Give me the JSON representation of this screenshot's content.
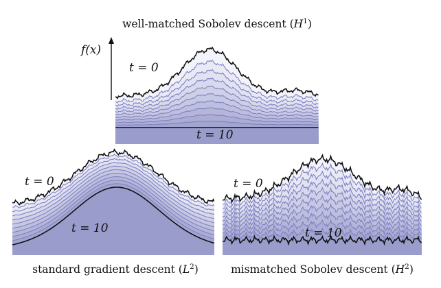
{
  "panels": {
    "top": {
      "caption_main": "well-matched Sobolev descent (",
      "caption_sym": "H",
      "caption_exp": "1",
      "caption_end": ")",
      "t_start": "t = 0",
      "t_end": "t = 10"
    },
    "left": {
      "caption_main": "standard gradient descent (",
      "caption_sym": "L",
      "caption_exp": "2",
      "caption_end": ")",
      "t_start": "t = 0",
      "t_end": "t = 10"
    },
    "right": {
      "caption_main": "mismatched Sobolev descent (",
      "caption_sym": "H",
      "caption_exp": "2",
      "caption_end": ")",
      "t_start": "t = 0",
      "t_end": "t = 10"
    }
  },
  "axis_label": "f(x)",
  "colors": {
    "fill_light": "#f3f3fb",
    "fill_dark": "#9a9ccc",
    "curve_line": "#7f82c0",
    "boundary": "#111111"
  }
}
